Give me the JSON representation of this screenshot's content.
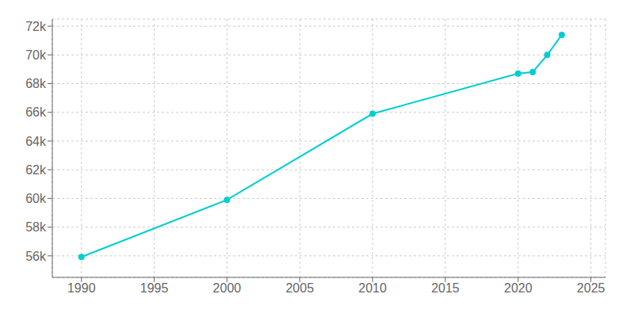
{
  "chart_data": {
    "type": "line",
    "x": [
      1990,
      2000,
      2010,
      2020,
      2021,
      2022,
      2023
    ],
    "values": [
      55920,
      59900,
      65900,
      68700,
      68800,
      70000,
      71400
    ],
    "color": "#00CED1",
    "marker": "circle",
    "xlim": [
      1988,
      2026
    ],
    "xticks": [
      1990,
      1995,
      2000,
      2005,
      2010,
      2015,
      2020,
      2025
    ],
    "ylim": [
      54500,
      72500
    ],
    "yticks": [
      {
        "value": 56000,
        "label": "56k"
      },
      {
        "value": 58000,
        "label": "58k"
      },
      {
        "value": 60000,
        "label": "60k"
      },
      {
        "value": 62000,
        "label": "62k"
      },
      {
        "value": 64000,
        "label": "64k"
      },
      {
        "value": 66000,
        "label": "66k"
      },
      {
        "value": 68000,
        "label": "68k"
      },
      {
        "value": 70000,
        "label": "70k"
      },
      {
        "value": 72000,
        "label": "72k"
      }
    ],
    "grid": true
  }
}
